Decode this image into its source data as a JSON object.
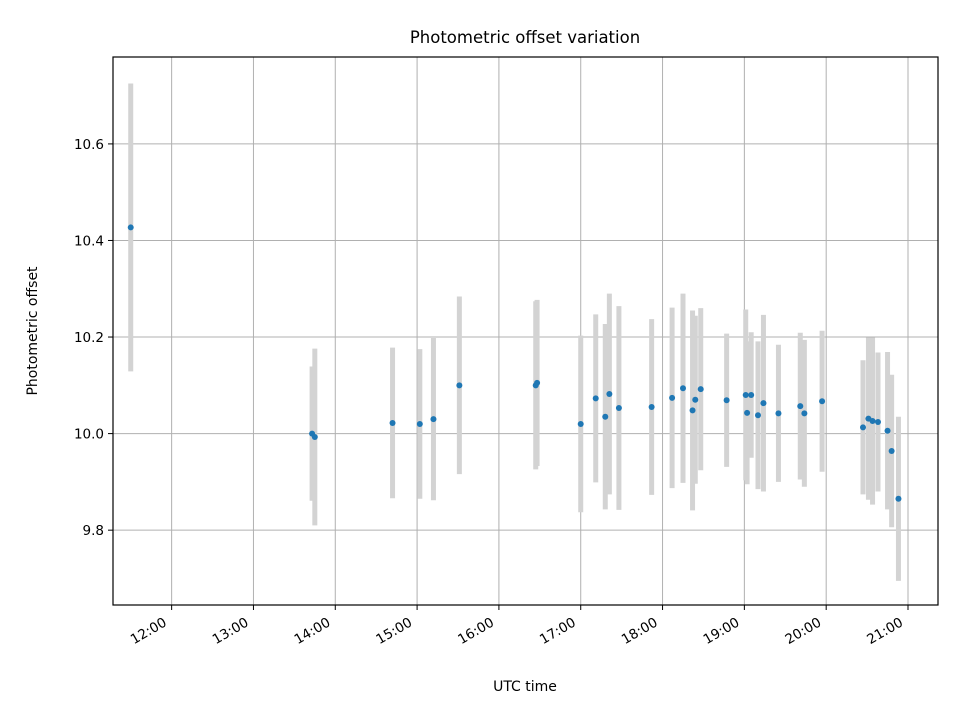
{
  "chart_data": {
    "type": "scatter",
    "title": "Photometric offset variation",
    "xlabel": "UTC time",
    "ylabel": "Photometric offset",
    "x_ticks": [
      "12:00",
      "13:00",
      "14:00",
      "15:00",
      "16:00",
      "17:00",
      "18:00",
      "19:00",
      "20:00",
      "21:00"
    ],
    "y_ticks": [
      "9.8",
      "10.0",
      "10.2",
      "10.4",
      "10.6"
    ],
    "xlim": [
      "11:17",
      "21:22"
    ],
    "ylim": [
      9.645,
      10.78
    ],
    "grid": true,
    "colors": {
      "point": "#1f77b4",
      "errorbar": "#d3d3d3",
      "grid": "#b0b0b0"
    },
    "points": [
      {
        "x": "11:30",
        "y": 10.427,
        "err": 0.298
      },
      {
        "x": "13:43",
        "y": 10.0,
        "err": 0.139
      },
      {
        "x": "13:45",
        "y": 9.993,
        "err": 0.183
      },
      {
        "x": "14:42",
        "y": 10.022,
        "err": 0.156
      },
      {
        "x": "15:02",
        "y": 10.02,
        "err": 0.155
      },
      {
        "x": "15:12",
        "y": 10.03,
        "err": 0.168
      },
      {
        "x": "15:31",
        "y": 10.1,
        "err": 0.184
      },
      {
        "x": "16:27",
        "y": 10.1,
        "err": 0.174
      },
      {
        "x": "16:28",
        "y": 10.105,
        "err": 0.172
      },
      {
        "x": "17:00",
        "y": 10.02,
        "err": 0.183
      },
      {
        "x": "17:11",
        "y": 10.073,
        "err": 0.174
      },
      {
        "x": "17:18",
        "y": 10.035,
        "err": 0.192
      },
      {
        "x": "17:21",
        "y": 10.082,
        "err": 0.208
      },
      {
        "x": "17:28",
        "y": 10.053,
        "err": 0.211
      },
      {
        "x": "17:52",
        "y": 10.055,
        "err": 0.182
      },
      {
        "x": "18:07",
        "y": 10.074,
        "err": 0.187
      },
      {
        "x": "18:15",
        "y": 10.094,
        "err": 0.196
      },
      {
        "x": "18:22",
        "y": 10.048,
        "err": 0.207
      },
      {
        "x": "18:24",
        "y": 10.07,
        "err": 0.174
      },
      {
        "x": "18:28",
        "y": 10.092,
        "err": 0.168
      },
      {
        "x": "18:47",
        "y": 10.069,
        "err": 0.138
      },
      {
        "x": "19:01",
        "y": 10.08,
        "err": 0.177
      },
      {
        "x": "19:02",
        "y": 10.043,
        "err": 0.148
      },
      {
        "x": "19:05",
        "y": 10.08,
        "err": 0.13
      },
      {
        "x": "19:10",
        "y": 10.038,
        "err": 0.153
      },
      {
        "x": "19:14",
        "y": 10.063,
        "err": 0.183
      },
      {
        "x": "19:25",
        "y": 10.042,
        "err": 0.142
      },
      {
        "x": "19:41",
        "y": 10.057,
        "err": 0.152
      },
      {
        "x": "19:44",
        "y": 10.042,
        "err": 0.152
      },
      {
        "x": "19:57",
        "y": 10.067,
        "err": 0.146
      },
      {
        "x": "20:27",
        "y": 10.013,
        "err": 0.139
      },
      {
        "x": "20:31",
        "y": 10.031,
        "err": 0.168
      },
      {
        "x": "20:34",
        "y": 10.026,
        "err": 0.173
      },
      {
        "x": "20:38",
        "y": 10.024,
        "err": 0.144
      },
      {
        "x": "20:45",
        "y": 10.006,
        "err": 0.163
      },
      {
        "x": "20:48",
        "y": 9.964,
        "err": 0.158
      },
      {
        "x": "20:53",
        "y": 9.865,
        "err": 0.17
      }
    ]
  }
}
